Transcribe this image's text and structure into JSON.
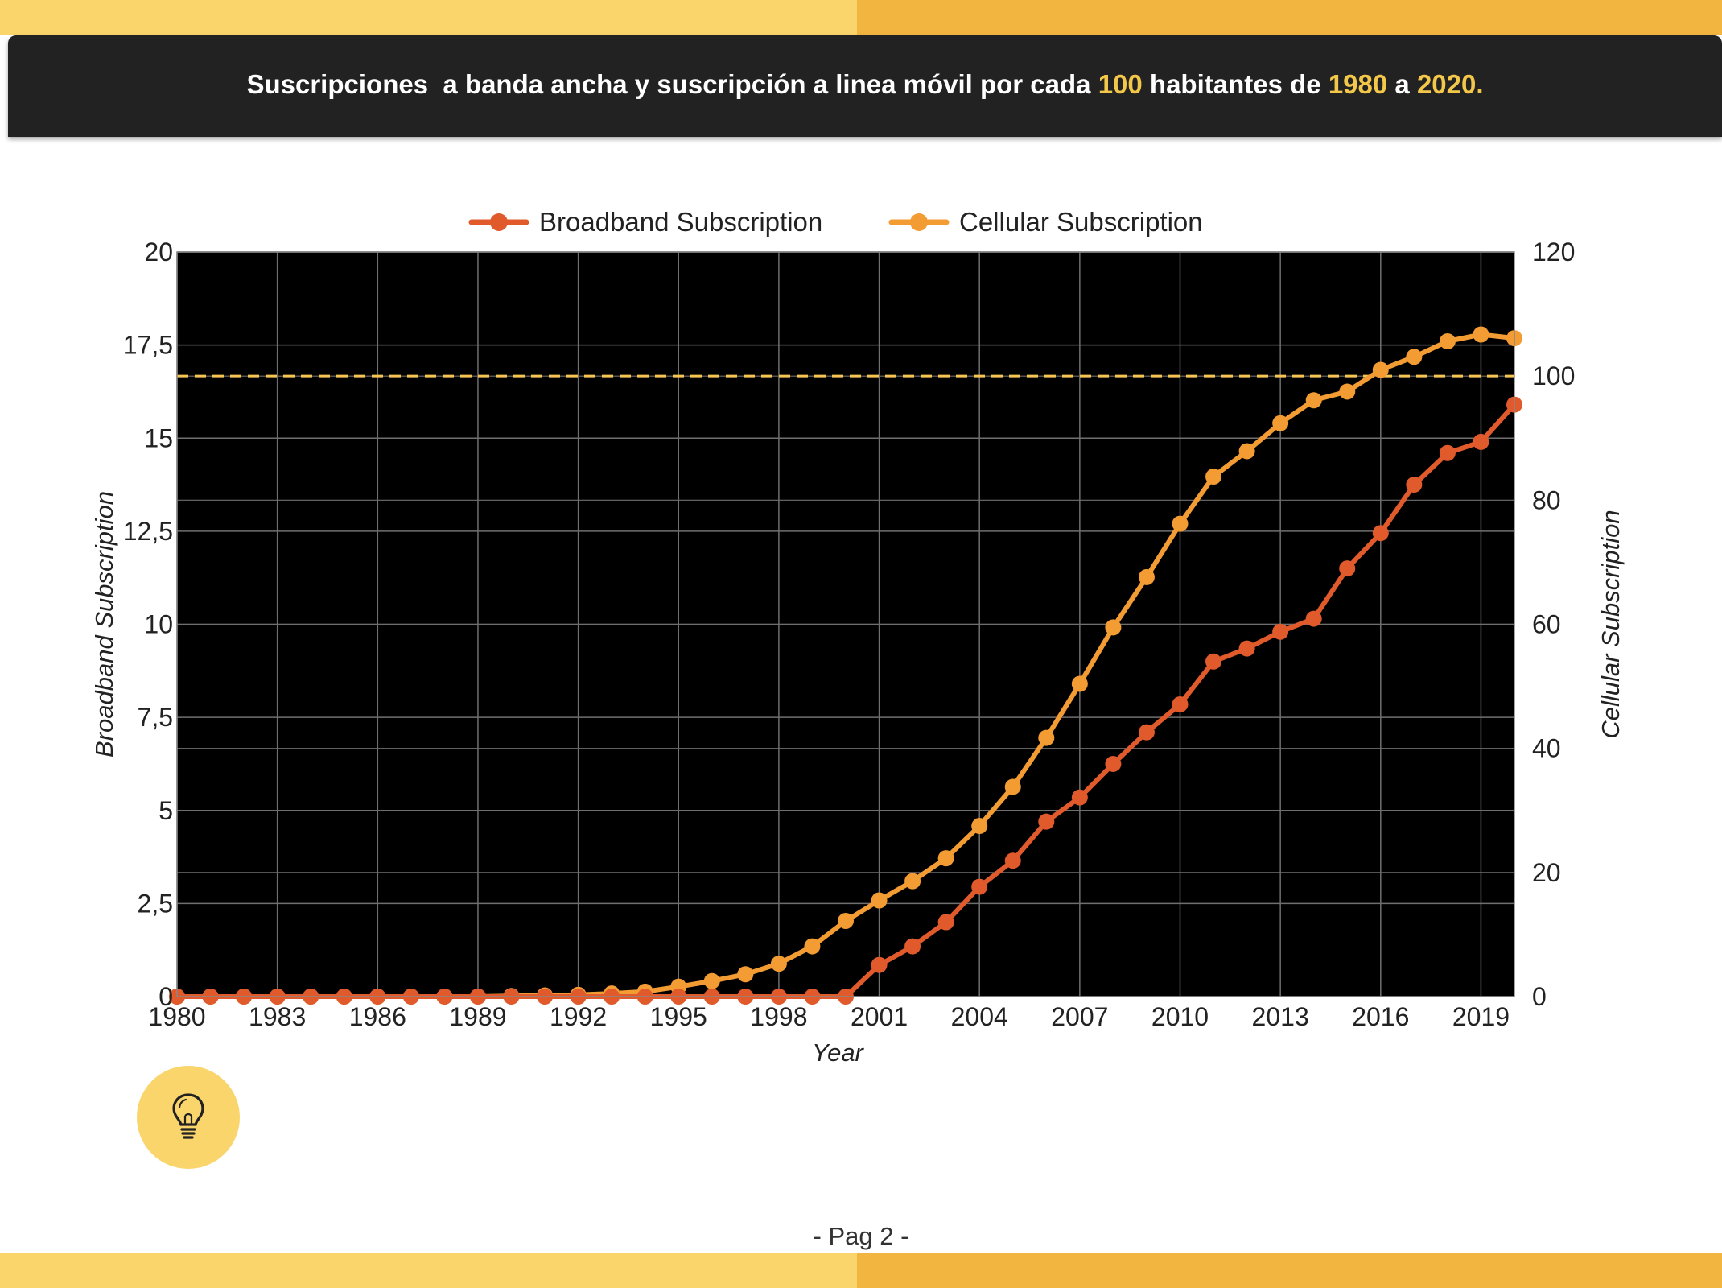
{
  "header": {
    "title_parts": [
      "Suscripciones  a banda ancha y suscripción a linea móvil por cada ",
      "100",
      " habitantes de ",
      "1980",
      " a ",
      "2020."
    ]
  },
  "footer": {
    "page_label": "- Pag 2 -"
  },
  "colors": {
    "strip_light": "#f9d56b",
    "strip_dark": "#f2b53f",
    "header_bg": "#222222",
    "highlight": "#f3c74a",
    "broadband": "#e05a2c",
    "cellular": "#f39c33",
    "reference_line": "#f6c453",
    "plot_bg": "#000000"
  },
  "icons": {
    "tip": "lightbulb-icon"
  },
  "chart_data": {
    "type": "line",
    "xlabel": "Year",
    "ylabel": "Broadband Subscription",
    "y2label": "Cellular Subscription",
    "legend_position": "top-center",
    "grid": true,
    "xlim": [
      1980,
      2020
    ],
    "ylim": [
      0,
      20
    ],
    "y2lim": [
      0,
      120
    ],
    "x_ticks": [
      1980,
      1983,
      1986,
      1989,
      1992,
      1995,
      1998,
      2001,
      2004,
      2007,
      2010,
      2013,
      2016,
      2019
    ],
    "x_tick_labels": [
      "1980",
      "1983",
      "1986",
      "1989",
      "1992",
      "1995",
      "1998",
      "2001",
      "2004",
      "2007",
      "2010",
      "2013",
      "2016",
      "2019"
    ],
    "y_ticks": [
      0,
      2.5,
      5,
      7.5,
      10,
      12.5,
      15,
      17.5,
      20
    ],
    "y_tick_labels": [
      "0",
      "2,5",
      "5",
      "7,5",
      "10",
      "12,5",
      "15",
      "17,5",
      "20"
    ],
    "y2_ticks": [
      0,
      20,
      40,
      60,
      80,
      100,
      120
    ],
    "y2_tick_labels": [
      "0",
      "20",
      "40",
      "60",
      "80",
      "100",
      "120"
    ],
    "reference_line": {
      "axis": "y2",
      "value": 100,
      "style": "dashed"
    },
    "x": [
      1980,
      1981,
      1982,
      1983,
      1984,
      1985,
      1986,
      1987,
      1988,
      1989,
      1990,
      1991,
      1992,
      1993,
      1994,
      1995,
      1996,
      1997,
      1998,
      1999,
      2000,
      2001,
      2002,
      2003,
      2004,
      2005,
      2006,
      2007,
      2008,
      2009,
      2010,
      2011,
      2012,
      2013,
      2014,
      2015,
      2016,
      2017,
      2018,
      2019,
      2020
    ],
    "series": [
      {
        "name": "Broadband Subscription",
        "axis": "y",
        "values": [
          0,
          0,
          0,
          0,
          0,
          0,
          0,
          0,
          0,
          0,
          0,
          0,
          0,
          0,
          0,
          0,
          0,
          0,
          0,
          0,
          0,
          0.85,
          1.35,
          2.0,
          2.95,
          3.65,
          4.7,
          5.35,
          6.25,
          7.1,
          7.85,
          9.0,
          9.35,
          9.8,
          10.15,
          11.5,
          12.45,
          13.75,
          14.6,
          14.9,
          15.9
        ]
      },
      {
        "name": "Cellular Subscription",
        "axis": "y2",
        "values": [
          0,
          0,
          0,
          0,
          0,
          0,
          0,
          0,
          0,
          0,
          0.1,
          0.2,
          0.3,
          0.5,
          0.8,
          1.6,
          2.5,
          3.6,
          5.3,
          8.1,
          12.2,
          15.5,
          18.6,
          22.3,
          27.5,
          33.8,
          41.7,
          50.4,
          59.5,
          67.6,
          76.2,
          83.8,
          87.9,
          92.4,
          96.1,
          97.5,
          101.0,
          103.1,
          105.6,
          106.7,
          106.1
        ]
      }
    ]
  }
}
